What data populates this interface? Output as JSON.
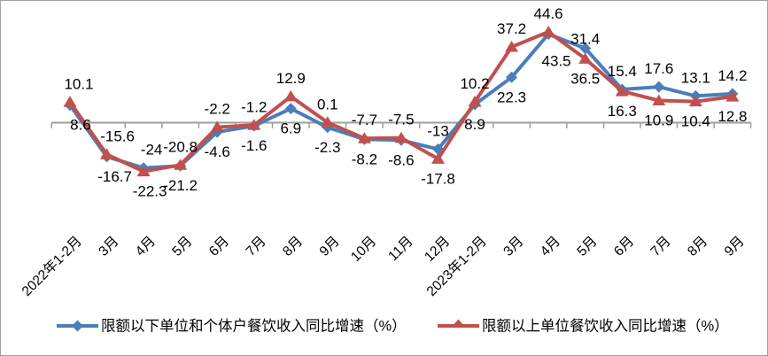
{
  "chart_data": {
    "type": "line",
    "title": "",
    "xlabel": "",
    "ylabel": "",
    "categories": [
      "2022年1-2月",
      "3月",
      "4月",
      "5月",
      "6月",
      "7月",
      "8月",
      "9月",
      "10月",
      "11月",
      "12月",
      "2023年1-2月",
      "3月",
      "4月",
      "5月",
      "6月",
      "7月",
      "8月",
      "9月"
    ],
    "series": [
      {
        "name": "限额以下单位和个体户餐饮收入同比增速（%）",
        "color": "#4a7ebb",
        "marker": "diamond",
        "values": [
          8.6,
          -16.7,
          -22.3,
          -21.2,
          -4.6,
          -1.6,
          6.9,
          -2.3,
          -8.2,
          -8.6,
          -13,
          8.9,
          22.3,
          43.5,
          36.5,
          16.3,
          17.6,
          13.1,
          14.2
        ]
      },
      {
        "name": "限额以上单位餐饮收入同比增速（%）",
        "color": "#c0504d",
        "marker": "triangle",
        "values": [
          10.1,
          -15.6,
          -24,
          -20.8,
          -2.2,
          -1.2,
          12.9,
          0.1,
          -7.7,
          -7.5,
          -17.8,
          10.2,
          37.2,
          44.6,
          31.4,
          15.4,
          10.9,
          10.4,
          12.8
        ]
      }
    ],
    "data_labels": true,
    "label_above_series_index": [
      1,
      1,
      1,
      1,
      1,
      1,
      1,
      1,
      1,
      1,
      0,
      1,
      1,
      1,
      1,
      1,
      0,
      0,
      0
    ],
    "label_nudges": {
      "0": {
        "dxa": 10,
        "dxb": 12
      },
      "1": {
        "dxa": 12,
        "dxb": 9
      },
      "2": {
        "dxa": 9,
        "dxb": 7
      },
      "13": {
        "dxb": 9,
        "dyb": 8
      },
      "14": {
        "dya": 10
      }
    },
    "ylim": [
      -30,
      50
    ],
    "y_axis_visible": false,
    "grid": false,
    "legend_position": "bottom",
    "axis_color": "#9e9e9e",
    "text_color": "#000000",
    "background": "#ffffff",
    "border_color": "#a0a0a0"
  }
}
